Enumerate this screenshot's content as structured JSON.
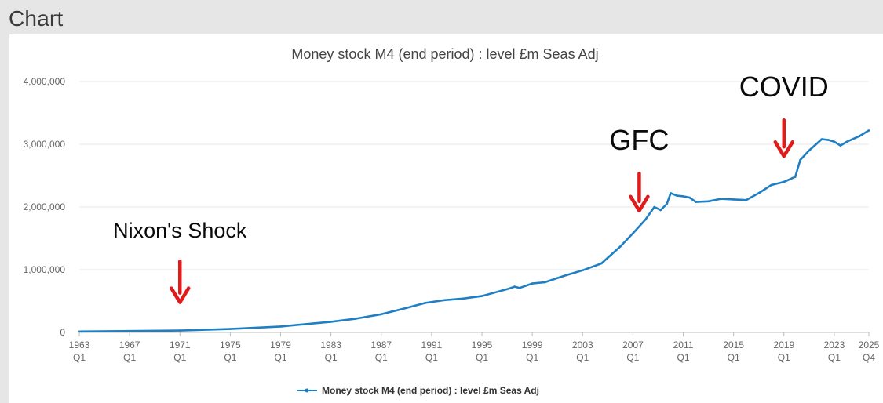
{
  "page": {
    "header_title": "Chart"
  },
  "chart_data": {
    "type": "line",
    "title": "Money stock M4 (end period) : level £m Seas Adj",
    "xlabel": "",
    "ylabel": "",
    "series_name": "Money stock M4 (end period) : level £m Seas Adj",
    "series_color": "#1f7fc4",
    "ylim": [
      0,
      4000000
    ],
    "xlim": [
      1963.0,
      2025.75
    ],
    "y_ticks": [
      {
        "value": 0,
        "label": "0"
      },
      {
        "value": 1000000,
        "label": "1,000,000"
      },
      {
        "value": 2000000,
        "label": "2,000,000"
      },
      {
        "value": 3000000,
        "label": "3,000,000"
      },
      {
        "value": 4000000,
        "label": "4,000,000"
      }
    ],
    "x_ticks": [
      {
        "value": 1963.0,
        "year": "1963",
        "q": "Q1"
      },
      {
        "value": 1967.0,
        "year": "1967",
        "q": "Q1"
      },
      {
        "value": 1971.0,
        "year": "1971",
        "q": "Q1"
      },
      {
        "value": 1975.0,
        "year": "1975",
        "q": "Q1"
      },
      {
        "value": 1979.0,
        "year": "1979",
        "q": "Q1"
      },
      {
        "value": 1983.0,
        "year": "1983",
        "q": "Q1"
      },
      {
        "value": 1987.0,
        "year": "1987",
        "q": "Q1"
      },
      {
        "value": 1991.0,
        "year": "1991",
        "q": "Q1"
      },
      {
        "value": 1995.0,
        "year": "1995",
        "q": "Q1"
      },
      {
        "value": 1999.0,
        "year": "1999",
        "q": "Q1"
      },
      {
        "value": 2003.0,
        "year": "2003",
        "q": "Q1"
      },
      {
        "value": 2007.0,
        "year": "2007",
        "q": "Q1"
      },
      {
        "value": 2011.0,
        "year": "2011",
        "q": "Q1"
      },
      {
        "value": 2015.0,
        "year": "2015",
        "q": "Q1"
      },
      {
        "value": 2019.0,
        "year": "2019",
        "q": "Q1"
      },
      {
        "value": 2023.0,
        "year": "2023",
        "q": "Q1"
      },
      {
        "value": 2025.75,
        "year": "2025",
        "q": "Q4"
      }
    ],
    "points": [
      {
        "x": 1963.0,
        "y": 15000
      },
      {
        "x": 1967.0,
        "y": 22000
      },
      {
        "x": 1971.0,
        "y": 30000
      },
      {
        "x": 1975.0,
        "y": 55000
      },
      {
        "x": 1979.0,
        "y": 95000
      },
      {
        "x": 1983.0,
        "y": 170000
      },
      {
        "x": 1985.0,
        "y": 220000
      },
      {
        "x": 1987.0,
        "y": 290000
      },
      {
        "x": 1989.0,
        "y": 390000
      },
      {
        "x": 1990.5,
        "y": 470000
      },
      {
        "x": 1992.0,
        "y": 515000
      },
      {
        "x": 1993.5,
        "y": 540000
      },
      {
        "x": 1995.0,
        "y": 580000
      },
      {
        "x": 1997.0,
        "y": 690000
      },
      {
        "x": 1997.6,
        "y": 730000
      },
      {
        "x": 1998.0,
        "y": 710000
      },
      {
        "x": 1999.0,
        "y": 780000
      },
      {
        "x": 2000.0,
        "y": 800000
      },
      {
        "x": 2001.5,
        "y": 900000
      },
      {
        "x": 2003.0,
        "y": 990000
      },
      {
        "x": 2004.5,
        "y": 1100000
      },
      {
        "x": 2006.0,
        "y": 1370000
      },
      {
        "x": 2007.0,
        "y": 1580000
      },
      {
        "x": 2008.0,
        "y": 1800000
      },
      {
        "x": 2008.7,
        "y": 2000000
      },
      {
        "x": 2009.2,
        "y": 1950000
      },
      {
        "x": 2009.7,
        "y": 2050000
      },
      {
        "x": 2010.0,
        "y": 2220000
      },
      {
        "x": 2010.5,
        "y": 2180000
      },
      {
        "x": 2011.0,
        "y": 2170000
      },
      {
        "x": 2011.5,
        "y": 2150000
      },
      {
        "x": 2012.0,
        "y": 2080000
      },
      {
        "x": 2013.0,
        "y": 2090000
      },
      {
        "x": 2014.0,
        "y": 2130000
      },
      {
        "x": 2015.0,
        "y": 2120000
      },
      {
        "x": 2016.0,
        "y": 2110000
      },
      {
        "x": 2017.0,
        "y": 2220000
      },
      {
        "x": 2018.0,
        "y": 2350000
      },
      {
        "x": 2019.0,
        "y": 2400000
      },
      {
        "x": 2019.9,
        "y": 2480000
      },
      {
        "x": 2020.3,
        "y": 2750000
      },
      {
        "x": 2021.0,
        "y": 2900000
      },
      {
        "x": 2022.0,
        "y": 3080000
      },
      {
        "x": 2022.5,
        "y": 3070000
      },
      {
        "x": 2023.0,
        "y": 3040000
      },
      {
        "x": 2023.5,
        "y": 2980000
      },
      {
        "x": 2024.0,
        "y": 3040000
      },
      {
        "x": 2025.0,
        "y": 3130000
      },
      {
        "x": 2025.75,
        "y": 3220000
      }
    ],
    "annotations": [
      {
        "text": "Nixon's Shock",
        "x": 1971.0,
        "y": 480000,
        "label_y": 1510000,
        "font_size": 27
      },
      {
        "text": "GFC",
        "x": 2007.5,
        "y": 1940000,
        "label_y": 2910000,
        "font_size": 36
      },
      {
        "text": "COVID",
        "x": 2019.0,
        "y": 2810000,
        "label_y": 3760000,
        "font_size": 36
      }
    ],
    "annotation_arrow_color": "#e01b1b",
    "grid": true,
    "legend_position": "bottom-center"
  }
}
